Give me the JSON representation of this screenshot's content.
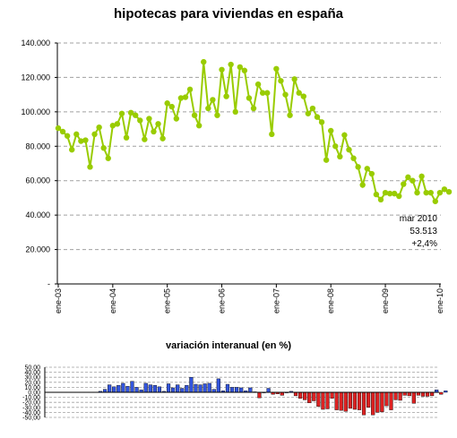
{
  "chart_data": [
    {
      "type": "line",
      "title": "hipotecas para viviendas en españa",
      "xlabel": "",
      "ylabel": "",
      "ylim": [
        0,
        140000
      ],
      "y_ticks": [
        0,
        20000,
        40000,
        60000,
        80000,
        100000,
        120000,
        140000
      ],
      "y_tick_labels": [
        "-",
        "20.000",
        "40.000",
        "60.000",
        "80.000",
        "100.000",
        "120.000",
        "140.000"
      ],
      "x_tick_labels": [
        "ene-03",
        "ene-04",
        "ene-05",
        "ene-06",
        "ene-07",
        "ene-08",
        "ene-09",
        "ene-10"
      ],
      "grid": true,
      "legend": "none",
      "line_color": "#99cc00",
      "annotation": [
        "mar 2010",
        "53.513",
        "+2,4%"
      ],
      "series": [
        {
          "values": [
            90500,
            88500,
            86000,
            78000,
            87000,
            83000,
            83500,
            68000,
            87000,
            91000,
            79000,
            73000,
            92000,
            93000,
            99000,
            85000,
            99500,
            98000,
            95000,
            84000,
            96000,
            88500,
            93000,
            84500,
            105000,
            103000,
            96000,
            108000,
            108500,
            113000,
            98000,
            92000,
            129000,
            102000,
            107000,
            98000,
            124500,
            109000,
            127500,
            100000,
            126000,
            124000,
            108000,
            102000,
            116000,
            111000,
            111000,
            87000,
            125000,
            118000,
            110000,
            98000,
            119000,
            111000,
            109000,
            99000,
            102000,
            97000,
            94000,
            72000,
            89000,
            80000,
            74000,
            86500,
            78000,
            73000,
            68000,
            57500,
            67000,
            64000,
            52000,
            49000,
            53000,
            52500,
            52500,
            51000,
            58000,
            62000,
            60000,
            53000,
            62500,
            53000,
            53000,
            48000,
            53000,
            55000,
            53513
          ]
        }
      ]
    },
    {
      "type": "bar",
      "title": "variación interanual (en %)",
      "xlabel": "",
      "ylabel": "",
      "ylim": [
        -50,
        50
      ],
      "y_ticks": [
        50,
        40,
        30,
        20,
        10,
        0,
        -10,
        -20,
        -30,
        -40,
        -50
      ],
      "y_tick_labels": [
        "50,00",
        "40,00",
        "30,00",
        "20,00",
        "10,00",
        "0,00",
        "-10,00",
        "-20,00",
        "-30,00",
        "-40,00",
        "-50,00"
      ],
      "grid": true,
      "legend": "none",
      "positive_color": "#3355dd",
      "negative_color": "#dd2222",
      "series": [
        {
          "values": [
            2,
            6,
            15,
            11,
            14,
            18,
            12,
            22,
            10,
            5,
            18,
            15,
            14,
            11,
            2,
            17,
            9,
            15,
            8,
            14,
            30,
            16,
            15,
            17,
            18,
            6,
            27,
            3,
            16,
            10,
            10,
            9,
            3,
            9,
            1,
            -11,
            0,
            8,
            -4,
            -3,
            -6,
            0,
            2,
            -7,
            -12,
            -15,
            -21,
            -17,
            -28,
            -34,
            -33,
            -12,
            -35,
            -36,
            -38,
            -32,
            -34,
            -35,
            -45,
            -30,
            -45,
            -40,
            -39,
            -27,
            -35,
            -15,
            -16,
            -6,
            -7,
            -22,
            -6,
            -8,
            -8,
            -7,
            5,
            -4,
            3
          ]
        }
      ]
    }
  ]
}
